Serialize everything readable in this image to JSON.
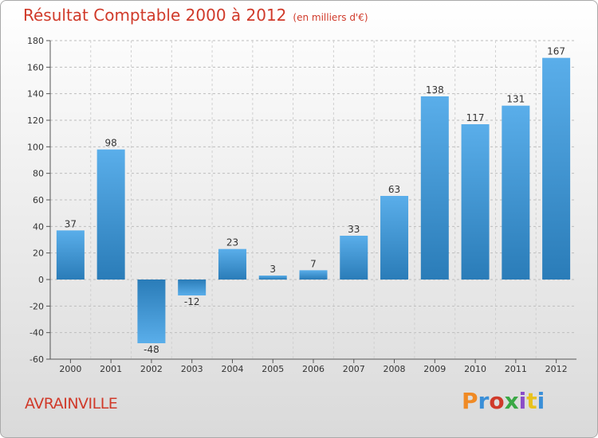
{
  "header": {
    "title": "Résultat Comptable 2000 à 2012",
    "unit": "(en milliers d'€)"
  },
  "footer": {
    "commune": "AVRAINVILLE",
    "logo_text": "Proxiti"
  },
  "colors": {
    "title": "#d03a2a",
    "bar_light": "#5aaeea",
    "bar_dark": "#2a7cb8",
    "logo": [
      "#f08a24",
      "#3a8fd8",
      "#d03a2a",
      "#3aa845",
      "#8a4cc8",
      "#e8c21e",
      "#3a8fd8"
    ]
  },
  "chart_data": {
    "type": "bar",
    "categories": [
      "2000",
      "2001",
      "2002",
      "2003",
      "2004",
      "2005",
      "2006",
      "2007",
      "2008",
      "2009",
      "2010",
      "2011",
      "2012"
    ],
    "values": [
      37,
      98,
      -48,
      -12,
      23,
      3,
      7,
      33,
      63,
      138,
      117,
      131,
      167
    ],
    "title": "Résultat Comptable 2000 à 2012",
    "ylim": [
      -60,
      180
    ],
    "yticks": [
      -60,
      -40,
      -20,
      0,
      20,
      40,
      60,
      80,
      100,
      120,
      140,
      160,
      180
    ],
    "grid": "horizontal dashed",
    "legend": "none"
  }
}
